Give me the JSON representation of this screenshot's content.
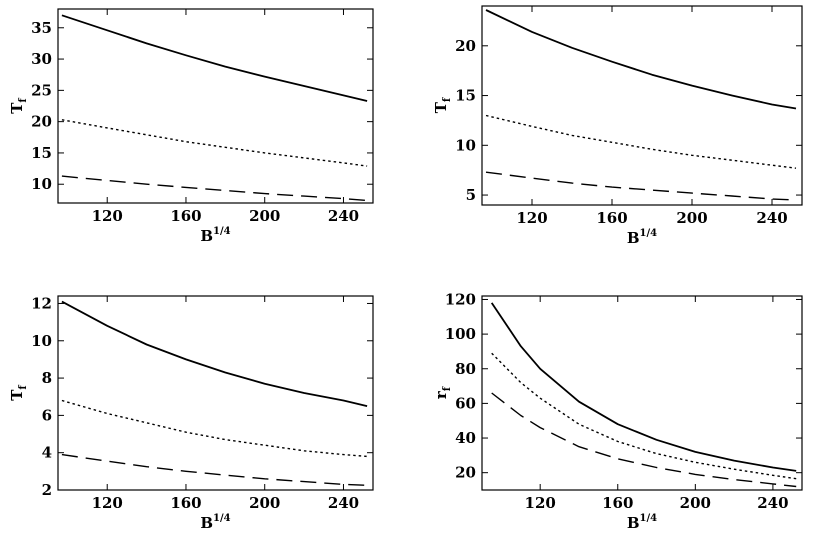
{
  "chart_data": [
    {
      "type": "line",
      "xlabel": "B",
      "xlabel_sup": "1/4",
      "ylabel": "T",
      "ylabel_sub": "f",
      "xlim": [
        95,
        255
      ],
      "ylim": [
        7,
        38
      ],
      "xticks": [
        120,
        160,
        200,
        240
      ],
      "yticks": [
        10,
        15,
        20,
        25,
        30,
        35
      ],
      "x": [
        97,
        120,
        140,
        160,
        180,
        200,
        220,
        240,
        252
      ],
      "series": [
        {
          "style": "solid",
          "values": [
            37.0,
            34.6,
            32.5,
            30.6,
            28.8,
            27.2,
            25.7,
            24.2,
            23.3
          ]
        },
        {
          "style": "dotted",
          "values": [
            20.3,
            19.0,
            17.9,
            16.8,
            15.9,
            15.0,
            14.2,
            13.4,
            12.9
          ]
        },
        {
          "style": "dashed",
          "values": [
            11.3,
            10.6,
            10.0,
            9.5,
            9.0,
            8.5,
            8.1,
            7.7,
            7.4
          ]
        }
      ]
    },
    {
      "type": "line",
      "xlabel": "B",
      "xlabel_sup": "1/4",
      "ylabel": "T",
      "ylabel_sub": "f",
      "xlim": [
        95,
        255
      ],
      "ylim": [
        4,
        24
      ],
      "xticks": [
        120,
        160,
        200,
        240
      ],
      "yticks": [
        5,
        10,
        15,
        20
      ],
      "x": [
        97,
        120,
        140,
        160,
        180,
        200,
        220,
        240,
        252
      ],
      "series": [
        {
          "style": "solid",
          "values": [
            23.6,
            21.4,
            19.8,
            18.4,
            17.1,
            16.0,
            15.0,
            14.1,
            13.7
          ]
        },
        {
          "style": "dotted",
          "values": [
            13.0,
            11.9,
            11.0,
            10.3,
            9.6,
            9.0,
            8.5,
            8.0,
            7.7
          ]
        },
        {
          "style": "dashed",
          "values": [
            7.3,
            6.7,
            6.2,
            5.8,
            5.5,
            5.2,
            4.9,
            4.6,
            4.5
          ]
        }
      ]
    },
    {
      "type": "line",
      "xlabel": "B",
      "xlabel_sup": "1/4",
      "ylabel": "T",
      "ylabel_sub": "f",
      "xlim": [
        95,
        255
      ],
      "ylim": [
        2,
        12.4
      ],
      "xticks": [
        120,
        160,
        200,
        240
      ],
      "yticks": [
        2,
        4,
        6,
        8,
        10,
        12
      ],
      "x": [
        97,
        120,
        140,
        160,
        180,
        200,
        220,
        240,
        252
      ],
      "series": [
        {
          "style": "solid",
          "values": [
            12.1,
            10.8,
            9.8,
            9.0,
            8.3,
            7.7,
            7.2,
            6.8,
            6.5
          ]
        },
        {
          "style": "dotted",
          "values": [
            6.8,
            6.1,
            5.6,
            5.1,
            4.7,
            4.4,
            4.1,
            3.9,
            3.8
          ]
        },
        {
          "style": "dashed",
          "values": [
            3.9,
            3.55,
            3.25,
            3.0,
            2.8,
            2.6,
            2.45,
            2.3,
            2.25
          ]
        }
      ]
    },
    {
      "type": "line",
      "xlabel": "B",
      "xlabel_sup": "1/4",
      "ylabel": "r",
      "ylabel_sub": "f",
      "xlim": [
        90,
        255
      ],
      "ylim": [
        10,
        122
      ],
      "xticks": [
        120,
        160,
        200,
        240
      ],
      "yticks": [
        20,
        40,
        60,
        80,
        100,
        120
      ],
      "x": [
        95,
        110,
        120,
        140,
        160,
        180,
        200,
        220,
        240,
        252
      ],
      "series": [
        {
          "style": "solid",
          "values": [
            118,
            93,
            80,
            61,
            48,
            39,
            32,
            27,
            23,
            21
          ]
        },
        {
          "style": "dotted",
          "values": [
            89,
            72,
            63,
            48,
            38,
            31,
            26,
            22,
            18.5,
            16.5
          ]
        },
        {
          "style": "dashed",
          "values": [
            66,
            53,
            46,
            35,
            28,
            23,
            19,
            16,
            13.5,
            12
          ]
        }
      ]
    }
  ]
}
